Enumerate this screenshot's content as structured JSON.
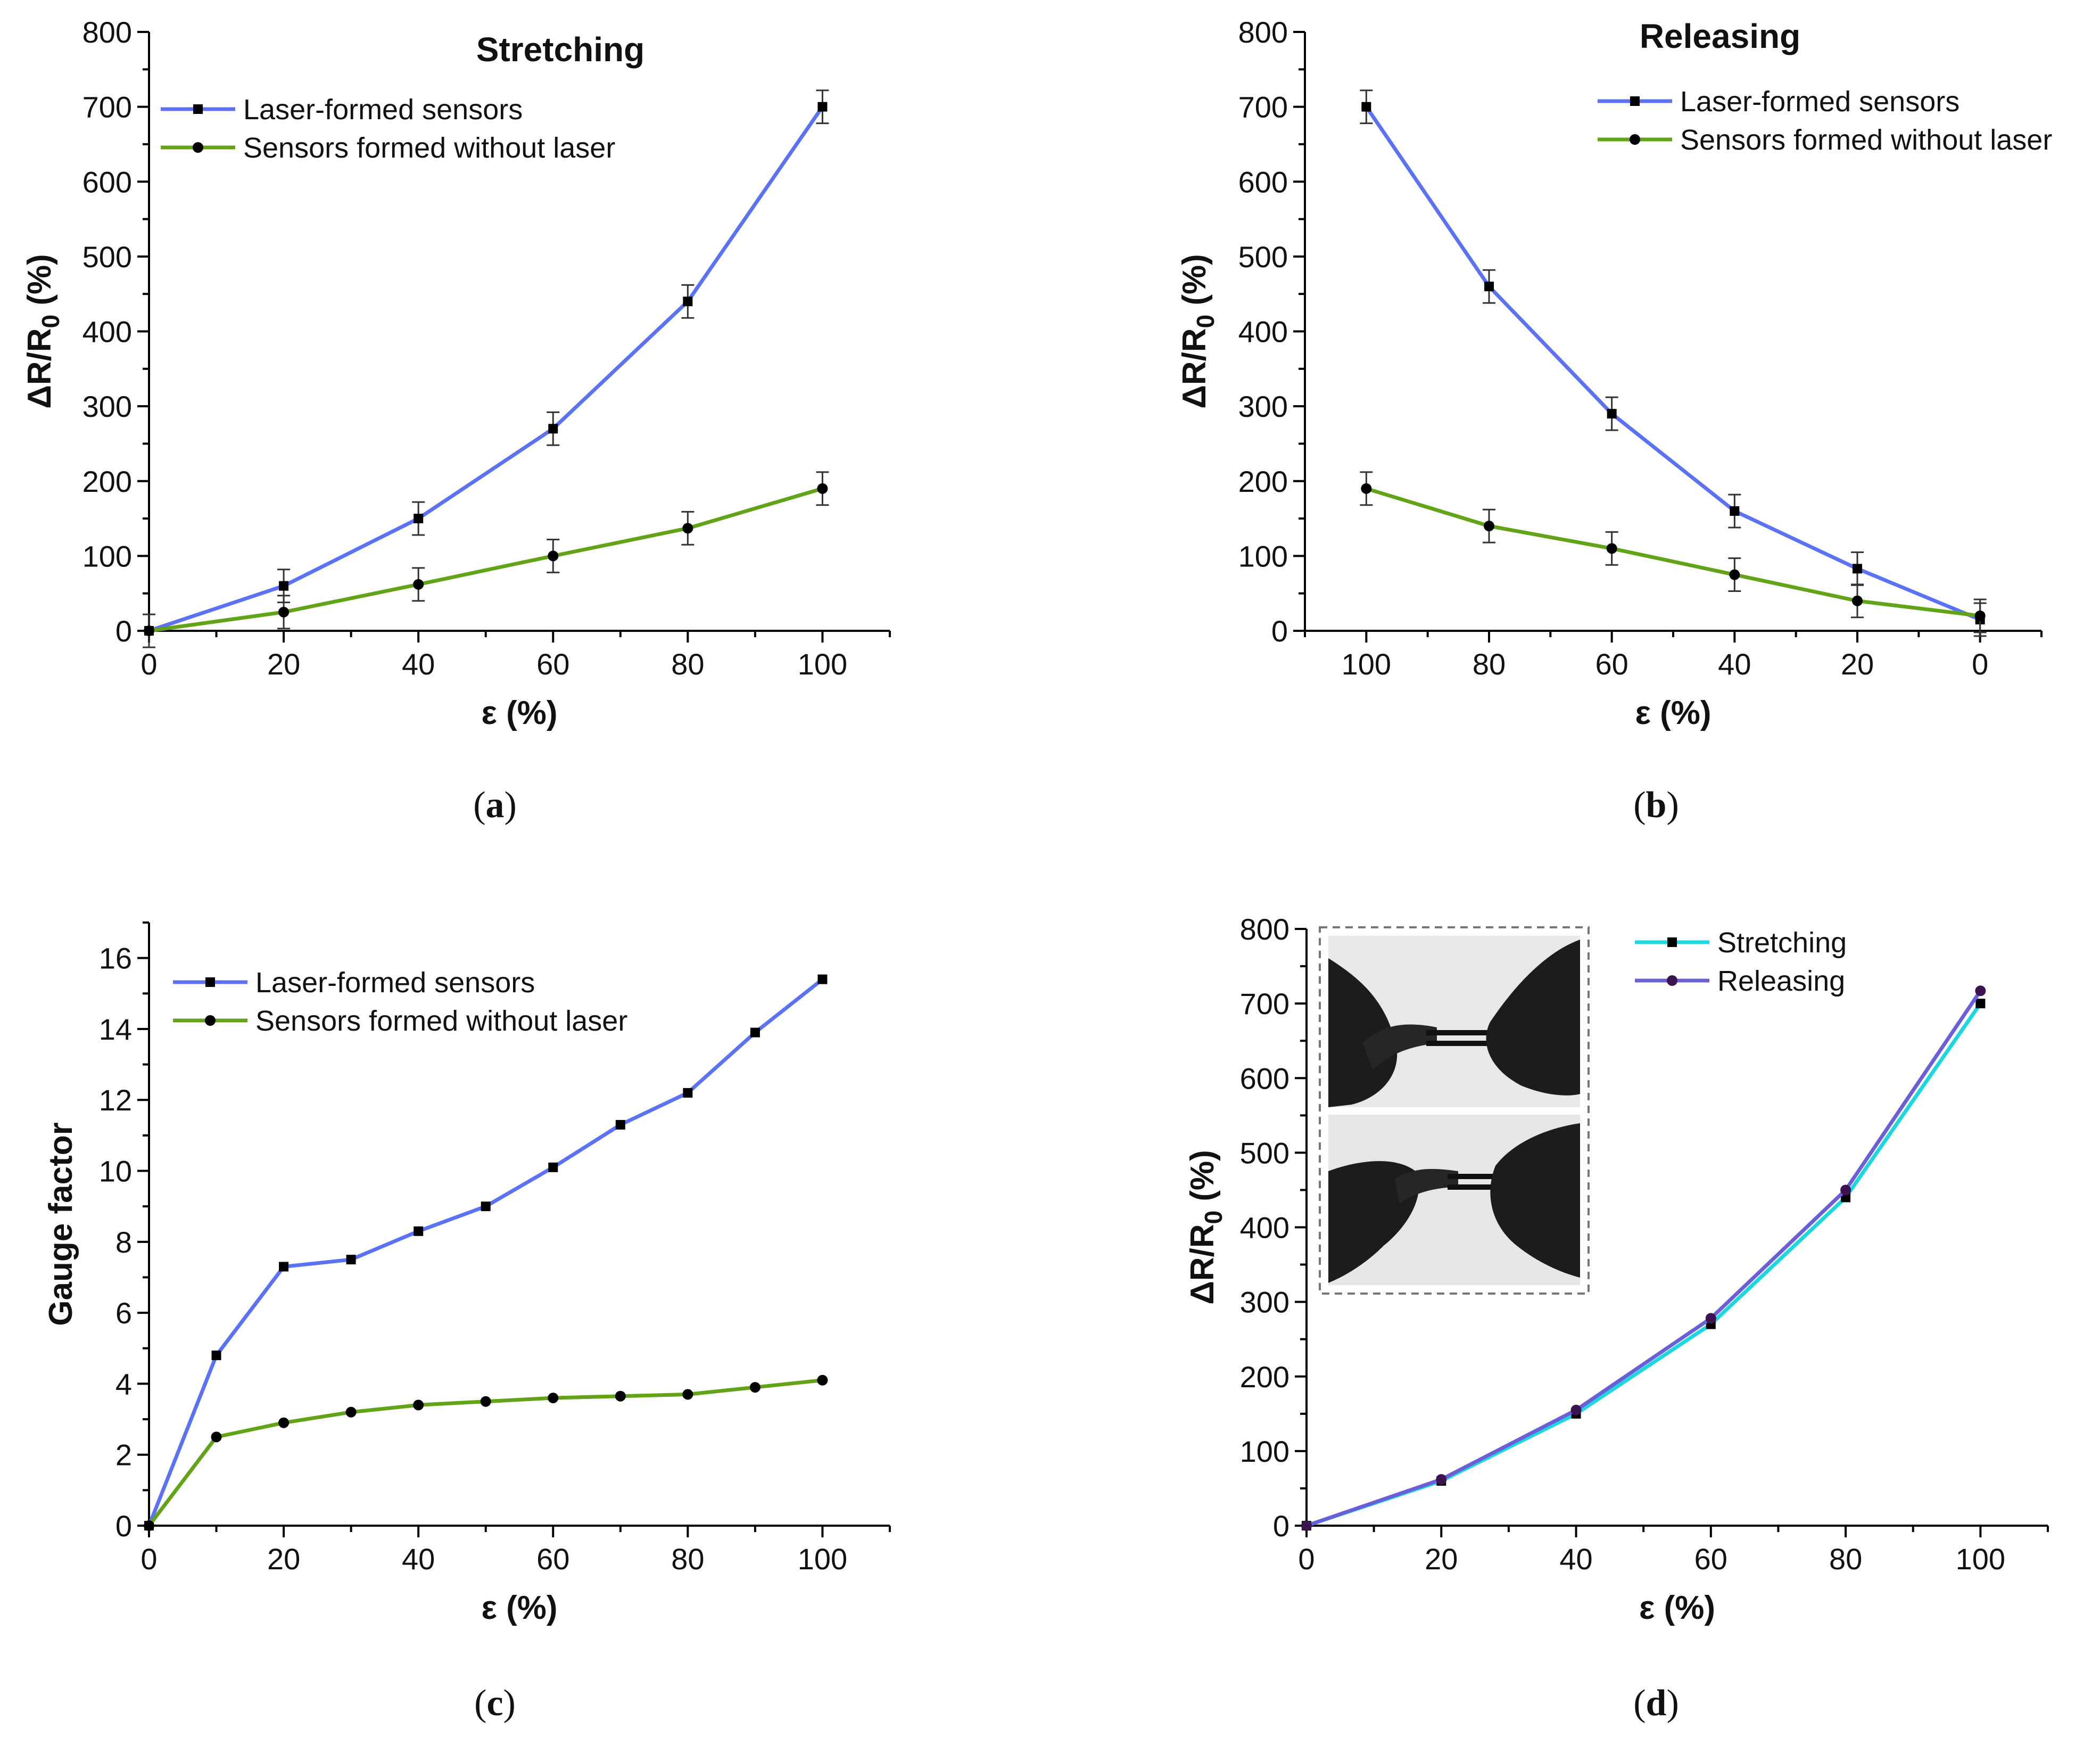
{
  "colors": {
    "laser": "#5b73f2",
    "nolaser": "#63a317",
    "stretching": "#1ad7e0",
    "releasing": "#6a5fd6",
    "marker": "#000000",
    "releasing_marker": "#3d1450"
  },
  "panels": {
    "a": {
      "label_open": "(",
      "label_letter": "a",
      "label_close": ")"
    },
    "b": {
      "label_open": "(",
      "label_letter": "b",
      "label_close": ")"
    },
    "c": {
      "label_open": "(",
      "label_letter": "c",
      "label_close": ")"
    },
    "d": {
      "label_open": "(",
      "label_letter": "d",
      "label_close": ")"
    }
  },
  "chart_data": [
    {
      "id": "a",
      "type": "line",
      "title": "Stretching",
      "xlabel": "ε (%)",
      "ylabel_main": "ΔR/R",
      "ylabel_sub": "0",
      "ylabel_tail": " (%)",
      "xlim": [
        0,
        110
      ],
      "ylim": [
        0,
        800
      ],
      "xticks": [
        0,
        20,
        40,
        60,
        80,
        100
      ],
      "yticks": [
        0,
        100,
        200,
        300,
        400,
        500,
        600,
        700,
        800
      ],
      "x_reversed": false,
      "series": [
        {
          "name": "Laser-formed sensors",
          "color_key": "laser",
          "marker": "square",
          "x": [
            0,
            20,
            40,
            60,
            80,
            100
          ],
          "y": [
            0,
            60,
            150,
            270,
            440,
            700
          ],
          "err": [
            22,
            22,
            22,
            22,
            22,
            22
          ]
        },
        {
          "name": "Sensors formed without laser",
          "color_key": "nolaser",
          "marker": "circle",
          "x": [
            0,
            20,
            40,
            60,
            80,
            100
          ],
          "y": [
            0,
            25,
            62,
            100,
            137,
            190
          ],
          "err": [
            0,
            22,
            22,
            22,
            22,
            22
          ]
        }
      ]
    },
    {
      "id": "b",
      "type": "line",
      "title": "Releasing",
      "xlabel": "ε (%)",
      "ylabel_main": "ΔR/R",
      "ylabel_sub": "0",
      "ylabel_tail": " (%)",
      "xlim": [
        -10,
        110
      ],
      "ylim": [
        0,
        800
      ],
      "xticks": [
        100,
        80,
        60,
        40,
        20,
        0
      ],
      "yticks": [
        0,
        100,
        200,
        300,
        400,
        500,
        600,
        700,
        800
      ],
      "x_reversed": true,
      "series": [
        {
          "name": "Laser-formed sensors",
          "color_key": "laser",
          "marker": "square",
          "x": [
            100,
            80,
            60,
            40,
            20,
            0
          ],
          "y": [
            700,
            460,
            290,
            160,
            83,
            15
          ],
          "err": [
            22,
            22,
            22,
            22,
            22,
            22
          ]
        },
        {
          "name": "Sensors formed without laser",
          "color_key": "nolaser",
          "marker": "circle",
          "x": [
            100,
            80,
            60,
            40,
            20,
            0
          ],
          "y": [
            190,
            140,
            110,
            75,
            40,
            20
          ],
          "err": [
            22,
            22,
            22,
            22,
            22,
            22
          ]
        }
      ]
    },
    {
      "id": "c",
      "type": "line",
      "title": "",
      "xlabel": "ε (%)",
      "ylabel_main": "Gauge factor",
      "ylabel_sub": "",
      "ylabel_tail": "",
      "xlim": [
        0,
        110
      ],
      "ylim": [
        0,
        17
      ],
      "xticks": [
        0,
        20,
        40,
        60,
        80,
        100
      ],
      "yticks": [
        0,
        2,
        4,
        6,
        8,
        10,
        12,
        14,
        16
      ],
      "x_reversed": false,
      "series": [
        {
          "name": "Laser-formed sensors",
          "color_key": "laser",
          "marker": "square",
          "x": [
            0,
            10,
            20,
            30,
            40,
            50,
            60,
            70,
            80,
            90,
            100
          ],
          "y": [
            0,
            4.8,
            7.3,
            7.5,
            8.3,
            9.0,
            10.1,
            11.3,
            12.2,
            13.9,
            15.4
          ]
        },
        {
          "name": "Sensors formed without laser",
          "color_key": "nolaser",
          "marker": "circle",
          "x": [
            0,
            10,
            20,
            30,
            40,
            50,
            60,
            70,
            80,
            90,
            100
          ],
          "y": [
            0,
            2.5,
            2.9,
            3.2,
            3.4,
            3.5,
            3.6,
            3.65,
            3.7,
            3.9,
            4.1
          ]
        }
      ]
    },
    {
      "id": "d",
      "type": "line",
      "title": "",
      "xlabel": "ε (%)",
      "ylabel_main": "ΔR/R",
      "ylabel_sub": "0",
      "ylabel_tail": " (%)",
      "xlim": [
        0,
        110
      ],
      "ylim": [
        0,
        800
      ],
      "xticks": [
        0,
        20,
        40,
        60,
        80,
        100
      ],
      "yticks": [
        0,
        100,
        200,
        300,
        400,
        500,
        600,
        700,
        800
      ],
      "x_reversed": false,
      "series": [
        {
          "name": "Stretching",
          "color_key": "stretching",
          "marker": "square",
          "x": [
            0,
            20,
            40,
            60,
            80,
            100
          ],
          "y": [
            0,
            60,
            150,
            270,
            440,
            700
          ]
        },
        {
          "name": "Releasing",
          "color_key": "releasing",
          "marker": "circle",
          "marker_color_key": "releasing_marker",
          "x": [
            0,
            20,
            40,
            60,
            80,
            100
          ],
          "y": [
            0,
            62,
            155,
            278,
            450,
            717
          ]
        }
      ]
    }
  ]
}
